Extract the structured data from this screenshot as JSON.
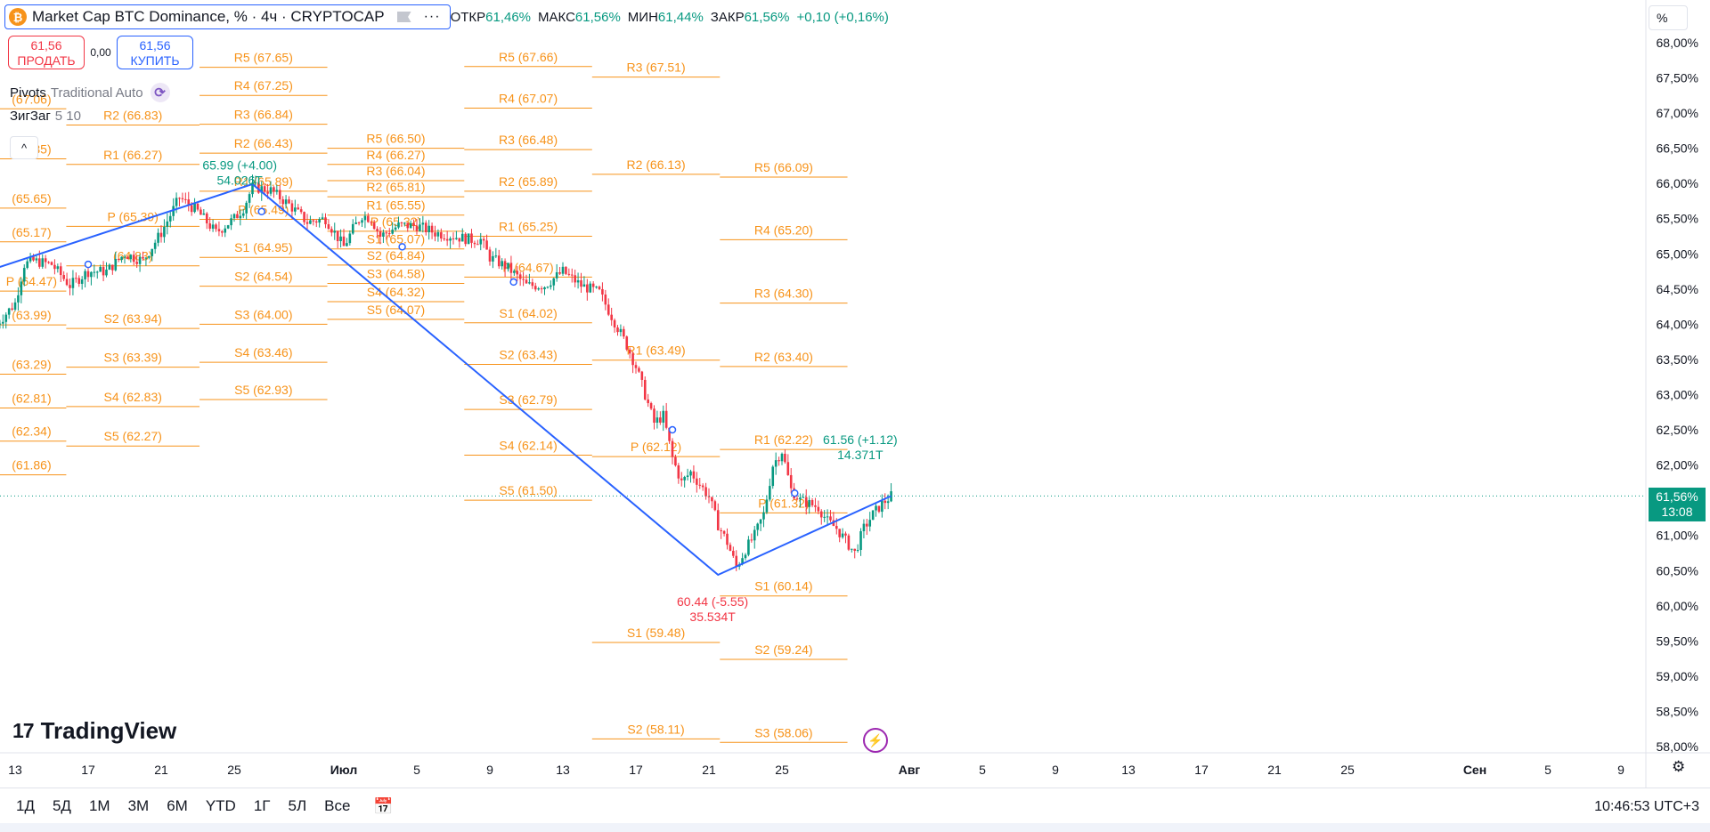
{
  "header": {
    "title": "Market Cap BTC Dominance, % · 4ч · CRYPTOCAP",
    "symbol_letter": "₿",
    "more_label": "···",
    "ohlc": [
      {
        "key": "ОТКР",
        "value": "61,46%"
      },
      {
        "key": "МАКС",
        "value": "61,56%"
      },
      {
        "key": "МИН",
        "value": "61,44%"
      },
      {
        "key": "ЗАКР",
        "value": "61,56%"
      },
      {
        "key": "",
        "value": "+0,10 (+0,16%)"
      }
    ]
  },
  "trade": {
    "sell_price": "61,56",
    "sell_label": "ПРОДАТЬ",
    "spread": "0,00",
    "buy_price": "61,56",
    "buy_label": "КУПИТЬ"
  },
  "indicators": {
    "pivots_name": "Pivots",
    "pivots_params": "Traditional Auto",
    "zigzag_name": "ЗигЗаг",
    "zigzag_params": "5 10",
    "collapse": "^"
  },
  "logo": {
    "text": "TradingView",
    "mark": "17"
  },
  "axis": {
    "unit": "%",
    "last_price": "61,56%",
    "countdown": "13:08"
  },
  "bottom": {
    "ranges": [
      "1Д",
      "5Д",
      "1М",
      "3М",
      "6М",
      "YTD",
      "1Г",
      "5Л",
      "Все"
    ],
    "clock": "10:46:53 UTC+3"
  },
  "colors": {
    "up": "#089981",
    "down": "#f23645",
    "pivot": "#f7931a",
    "zigzag": "#2962ff",
    "accent": "#2962ff"
  },
  "chart_data": {
    "type": "candlestick",
    "ylim": [
      57.95,
      68.1
    ],
    "y_ticks": [
      {
        "v": 68.0,
        "label": "68,00%"
      },
      {
        "v": 67.5,
        "label": "67,50%"
      },
      {
        "v": 67.0,
        "label": "67,00%"
      },
      {
        "v": 66.5,
        "label": "66,50%"
      },
      {
        "v": 66.0,
        "label": "66,00%"
      },
      {
        "v": 65.5,
        "label": "65,50%"
      },
      {
        "v": 65.0,
        "label": "65,00%"
      },
      {
        "v": 64.5,
        "label": "64,50%"
      },
      {
        "v": 64.0,
        "label": "64,00%"
      },
      {
        "v": 63.5,
        "label": "63,50%"
      },
      {
        "v": 63.0,
        "label": "63,00%"
      },
      {
        "v": 62.5,
        "label": "62,50%"
      },
      {
        "v": 62.0,
        "label": "62,00%"
      },
      {
        "v": 61.5,
        "label": "61,50%"
      },
      {
        "v": 61.0,
        "label": "61,00%"
      },
      {
        "v": 60.5,
        "label": "60,50%"
      },
      {
        "v": 60.0,
        "label": "60,00%"
      },
      {
        "v": 59.5,
        "label": "59,50%"
      },
      {
        "v": 59.0,
        "label": "59,00%"
      },
      {
        "v": 58.5,
        "label": "58,50%"
      },
      {
        "v": 58.0,
        "label": "58,00%"
      }
    ],
    "x_ticks": [
      {
        "i": 0,
        "label": "13"
      },
      {
        "i": 4,
        "label": "17"
      },
      {
        "i": 8,
        "label": "21"
      },
      {
        "i": 12,
        "label": "25"
      },
      {
        "i": 18,
        "label": "Июл"
      },
      {
        "i": 22,
        "label": "5"
      },
      {
        "i": 26,
        "label": "9"
      },
      {
        "i": 30,
        "label": "13"
      },
      {
        "i": 34,
        "label": "17"
      },
      {
        "i": 38,
        "label": "21"
      },
      {
        "i": 42,
        "label": "25"
      },
      {
        "i": 49,
        "label": "Авг"
      },
      {
        "i": 53,
        "label": "5"
      },
      {
        "i": 57,
        "label": "9"
      },
      {
        "i": 61,
        "label": "13"
      },
      {
        "i": 65,
        "label": "17"
      },
      {
        "i": 69,
        "label": "21"
      },
      {
        "i": 73,
        "label": "25"
      },
      {
        "i": 80,
        "label": "Сен"
      },
      {
        "i": 84,
        "label": "5"
      },
      {
        "i": 88,
        "label": "9"
      }
    ],
    "anchors_day_to_x": [
      [
        0,
        17
      ],
      [
        4,
        99
      ],
      [
        8,
        181
      ],
      [
        12,
        263
      ],
      [
        18,
        386
      ],
      [
        22,
        468
      ],
      [
        26,
        550
      ],
      [
        30,
        632
      ],
      [
        34,
        714
      ],
      [
        38,
        796
      ],
      [
        42,
        878
      ],
      [
        49,
        1021
      ],
      [
        53,
        1103
      ],
      [
        57,
        1185
      ],
      [
        61,
        1267
      ],
      [
        65,
        1349
      ],
      [
        69,
        1431
      ],
      [
        73,
        1513
      ],
      [
        80,
        1656
      ],
      [
        84,
        1738
      ],
      [
        88,
        1820
      ]
    ],
    "price_path": [
      [
        -1,
        64.0
      ],
      [
        0,
        64.3
      ],
      [
        0.5,
        64.85
      ],
      [
        1,
        64.9
      ],
      [
        2,
        64.85
      ],
      [
        3,
        64.55
      ],
      [
        4,
        64.75
      ],
      [
        5,
        64.75
      ],
      [
        6,
        65.0
      ],
      [
        7,
        64.9
      ],
      [
        8,
        65.3
      ],
      [
        9,
        65.8
      ],
      [
        10,
        65.6
      ],
      [
        11,
        65.3
      ],
      [
        12,
        65.5
      ],
      [
        12.5,
        65.65
      ],
      [
        13,
        65.95
      ],
      [
        14,
        65.9
      ],
      [
        15,
        65.7
      ],
      [
        16,
        65.45
      ],
      [
        17,
        65.5
      ],
      [
        18,
        65.1
      ],
      [
        18.5,
        65.35
      ],
      [
        19,
        65.55
      ],
      [
        19.5,
        65.5
      ],
      [
        20,
        65.25
      ],
      [
        21,
        65.4
      ],
      [
        22,
        65.4
      ],
      [
        23,
        65.3
      ],
      [
        24,
        65.25
      ],
      [
        25,
        65.2
      ],
      [
        25.5,
        65.2
      ],
      [
        26,
        64.95
      ],
      [
        27,
        64.8
      ],
      [
        28,
        64.55
      ],
      [
        29,
        64.55
      ],
      [
        30,
        64.75
      ],
      [
        31,
        64.55
      ],
      [
        32,
        64.45
      ],
      [
        33,
        63.95
      ],
      [
        33.5,
        63.7
      ],
      [
        34,
        63.4
      ],
      [
        34.5,
        63.0
      ],
      [
        35,
        62.6
      ],
      [
        35.5,
        62.7
      ],
      [
        36,
        62.1
      ],
      [
        36.5,
        61.75
      ],
      [
        37,
        61.9
      ],
      [
        38,
        61.55
      ],
      [
        38.5,
        61.15
      ],
      [
        39,
        60.9
      ],
      [
        39.5,
        60.55
      ],
      [
        40,
        60.8
      ],
      [
        40.5,
        61.0
      ],
      [
        41,
        61.3
      ],
      [
        41.5,
        62.0
      ],
      [
        42,
        62.2
      ],
      [
        42.5,
        61.65
      ],
      [
        43,
        61.5
      ],
      [
        44,
        61.4
      ],
      [
        44.5,
        61.2
      ],
      [
        45,
        61.1
      ],
      [
        46,
        60.75
      ],
      [
        46.5,
        61.1
      ],
      [
        47,
        61.3
      ],
      [
        47.5,
        61.45
      ],
      [
        48,
        61.56
      ]
    ],
    "zigzag": [
      [
        -1,
        64.8
      ],
      [
        13,
        65.99
      ],
      [
        38.5,
        60.44
      ],
      [
        48,
        61.56
      ]
    ],
    "zigzag_labels": [
      {
        "x": 12.3,
        "y": 66.2,
        "lines": [
          "65.99 (+4.00)",
          "54.026T"
        ],
        "color": "up"
      },
      {
        "x": 38.2,
        "y": 60.0,
        "lines": [
          "60.44 (-5.55)",
          "35.534T"
        ],
        "color": "down"
      },
      {
        "x": 46.3,
        "y": 62.3,
        "lines": [
          "61.56 (+1.12)",
          "14.371T"
        ],
        "color": "up"
      }
    ],
    "markers": [
      [
        4,
        64.85
      ],
      [
        13.5,
        65.6
      ],
      [
        21.2,
        65.1
      ],
      [
        27.3,
        64.6
      ],
      [
        36,
        62.5
      ],
      [
        42.7,
        61.6
      ]
    ],
    "pivot_periods": [
      {
        "x0": -1,
        "x1": 2.8,
        "levels": [
          [
            "",
            "67.06"
          ],
          [
            "",
            "66.35"
          ],
          [
            "",
            "65.65"
          ],
          [
            "",
            "65.17"
          ],
          [
            "P",
            "64.47"
          ],
          [
            "",
            "63.99"
          ],
          [
            "",
            "63.29"
          ],
          [
            "",
            "62.81"
          ],
          [
            "",
            "62.34"
          ],
          [
            "",
            "61.86"
          ]
        ]
      },
      {
        "x0": 2.8,
        "x1": 10.1,
        "levels": [
          [
            "R2",
            "66.83"
          ],
          [
            "R1",
            "66.27"
          ],
          [
            "P",
            "65.39"
          ],
          [
            "",
            "64.83"
          ],
          [
            "S2",
            "63.94"
          ],
          [
            "S3",
            "63.39"
          ],
          [
            "S4",
            "62.83"
          ],
          [
            "S5",
            "62.27"
          ]
        ]
      },
      {
        "x0": 10.1,
        "x1": 17.1,
        "levels": [
          [
            "R5",
            "67.65"
          ],
          [
            "R4",
            "67.25"
          ],
          [
            "R3",
            "66.84"
          ],
          [
            "R2",
            "66.43"
          ],
          [
            "R1",
            "65.89"
          ],
          [
            "P",
            "65.49"
          ],
          [
            "S1",
            "64.95"
          ],
          [
            "S2",
            "64.54"
          ],
          [
            "S3",
            "64.00"
          ],
          [
            "S4",
            "63.46"
          ],
          [
            "S5",
            "62.93"
          ]
        ]
      },
      {
        "x0": 17.1,
        "x1": 24.6,
        "levels": [
          [
            "R5",
            "66.50"
          ],
          [
            "R4",
            "66.27"
          ],
          [
            "R3",
            "66.04"
          ],
          [
            "R2",
            "65.81"
          ],
          [
            "R1",
            "65.55"
          ],
          [
            "P",
            "65.32"
          ],
          [
            "S1",
            "65.07"
          ],
          [
            "S2",
            "64.84"
          ],
          [
            "S3",
            "64.58"
          ],
          [
            "S4",
            "64.32"
          ],
          [
            "S5",
            "64.07"
          ]
        ]
      },
      {
        "x0": 24.6,
        "x1": 31.6,
        "levels": [
          [
            "R5",
            "67.66"
          ],
          [
            "R4",
            "67.07"
          ],
          [
            "R3",
            "66.48"
          ],
          [
            "R2",
            "65.89"
          ],
          [
            "R1",
            "65.25"
          ],
          [
            "P",
            "64.67"
          ],
          [
            "S1",
            "64.02"
          ],
          [
            "S2",
            "63.43"
          ],
          [
            "S3",
            "62.79"
          ],
          [
            "S4",
            "62.14"
          ],
          [
            "S5",
            "61.50"
          ]
        ]
      },
      {
        "x0": 31.6,
        "x1": 38.6,
        "levels": [
          [
            "R3",
            "67.51"
          ],
          [
            "R2",
            "66.13"
          ],
          [
            "R1",
            "63.49"
          ],
          [
            "P",
            "62.12"
          ],
          [
            "S1",
            "59.48"
          ],
          [
            "S2",
            "58.11"
          ]
        ]
      },
      {
        "x0": 38.6,
        "x1": 45.6,
        "levels": [
          [
            "R5",
            "66.09"
          ],
          [
            "R4",
            "65.20"
          ],
          [
            "R3",
            "64.30"
          ],
          [
            "R2",
            "63.40"
          ],
          [
            "R1",
            "62.22"
          ],
          [
            "P",
            "61.32"
          ],
          [
            "S1",
            "60.14"
          ],
          [
            "S2",
            "59.24"
          ],
          [
            "S3",
            "58.06"
          ]
        ]
      }
    ]
  }
}
